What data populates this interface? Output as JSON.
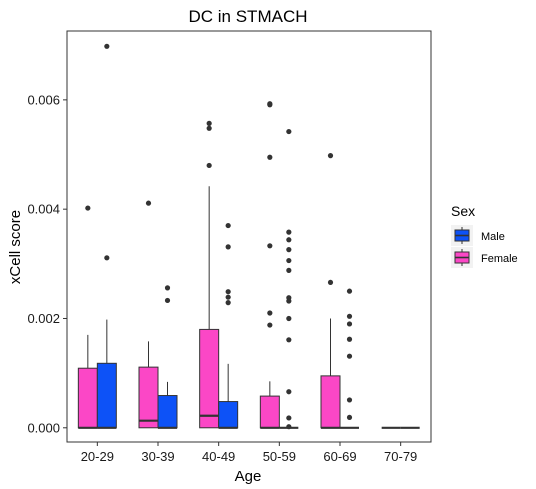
{
  "chart_data": {
    "type": "boxplot",
    "title": "DC in STMACH",
    "xlabel": "Age",
    "ylabel": "xCell score",
    "categories": [
      "20-29",
      "30-39",
      "40-49",
      "50-59",
      "60-69",
      "70-79"
    ],
    "ylim": [
      -0.00026,
      0.00726
    ],
    "yticks": [
      0.0,
      0.002,
      0.004,
      0.006
    ],
    "ytick_labels": [
      "0.000",
      "0.002",
      "0.004",
      "0.006"
    ],
    "grid": false,
    "legend": {
      "title": "Sex",
      "position": "right",
      "entries": [
        {
          "label": "Male",
          "color": "#0d52f7"
        },
        {
          "label": "Female",
          "color": "#fb47c6"
        }
      ]
    },
    "series": [
      {
        "name": "Female",
        "color": "#fb47c6",
        "boxes": [
          {
            "category": "20-29",
            "min": 0,
            "q1": 0,
            "median": 0,
            "q3": 0.00109,
            "max": 0.0017,
            "outliers": [
              0.00402
            ]
          },
          {
            "category": "30-39",
            "min": 0,
            "q1": 0,
            "median": 0.00013,
            "q3": 0.00111,
            "max": 0.00158,
            "outliers": [
              0.00411
            ]
          },
          {
            "category": "40-49",
            "min": 0,
            "q1": 0,
            "median": 0.00022,
            "q3": 0.0018,
            "max": 0.00442,
            "outliers": [
              0.0048,
              0.00548,
              0.00557
            ]
          },
          {
            "category": "50-59",
            "min": 0,
            "q1": 0,
            "median": 0,
            "q3": 0.00058,
            "max": 0.00085,
            "outliers": [
              0.00188,
              0.0021,
              0.00333,
              0.00495,
              0.00591,
              0.00593
            ]
          },
          {
            "category": "60-69",
            "min": 0,
            "q1": 0,
            "median": 0,
            "q3": 0.00095,
            "max": 0.002,
            "outliers": [
              0.00266,
              0.00498
            ]
          },
          {
            "category": "70-79",
            "min": 0,
            "q1": 0,
            "median": 0,
            "q3": 0,
            "max": 0,
            "outliers": []
          }
        ]
      },
      {
        "name": "Male",
        "color": "#0d52f7",
        "boxes": [
          {
            "category": "20-29",
            "min": 0,
            "q1": 0,
            "median": 0,
            "q3": 0.00118,
            "max": 0.00198,
            "outliers": [
              0.00311,
              0.00698
            ]
          },
          {
            "category": "30-39",
            "min": 0,
            "q1": 0,
            "median": 0,
            "q3": 0.00059,
            "max": 0.00084,
            "outliers": [
              0.00233,
              0.00256
            ]
          },
          {
            "category": "40-49",
            "min": 0,
            "q1": 0,
            "median": 0,
            "q3": 0.00048,
            "max": 0.00117,
            "outliers": [
              0.00229,
              0.00239,
              0.00249,
              0.00331,
              0.0037
            ]
          },
          {
            "category": "50-59",
            "min": 0,
            "q1": 0,
            "median": 0,
            "q3": 0,
            "max": 0,
            "outliers": [
              2e-05,
              0.00018,
              0.00066,
              0.00161,
              0.002,
              0.00232,
              0.00238,
              0.00288,
              0.00306,
              0.00326,
              0.00344,
              0.00358,
              0.00542
            ]
          },
          {
            "category": "60-69",
            "min": 0,
            "q1": 0,
            "median": 0,
            "q3": 0,
            "max": 0,
            "outliers": [
              0.00019,
              0.00051,
              0.00131,
              0.00162,
              0.0019,
              0.00204,
              0.0025
            ]
          },
          {
            "category": "70-79",
            "min": 0,
            "q1": 0,
            "median": 0,
            "q3": 0,
            "max": 0,
            "outliers": []
          }
        ]
      }
    ]
  }
}
